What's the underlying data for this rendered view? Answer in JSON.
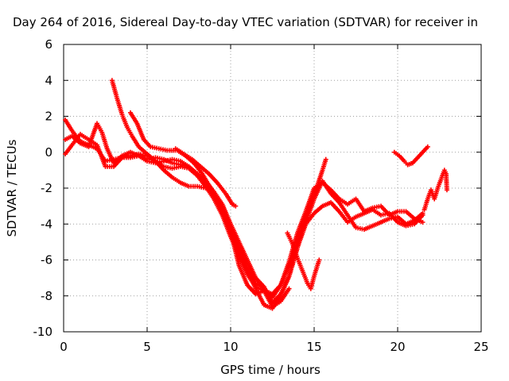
{
  "chart_data": {
    "type": "scatter",
    "title": "Day 264 of 2016, Sidereal Day-to-day VTEC variation (SDTVAR) for receiver in",
    "xlabel": "GPS time / hours",
    "ylabel": "SDTVAR / TECUs",
    "xlim": [
      0,
      25
    ],
    "ylim": [
      -10,
      6
    ],
    "xticks": [
      "0",
      "5",
      "10",
      "15",
      "20",
      "25"
    ],
    "yticks": [
      "-10",
      "-8",
      "-6",
      "-4",
      "-2",
      "0",
      "2",
      "4",
      "6"
    ],
    "grid": true,
    "marker": "plus",
    "color": "#ff0000",
    "series": [
      {
        "points": [
          [
            0.1,
            1.8
          ],
          [
            0.5,
            1.2
          ],
          [
            1.0,
            0.6
          ],
          [
            1.5,
            0.4
          ],
          [
            2.0,
            0.2
          ],
          [
            2.5,
            -0.5
          ],
          [
            3.0,
            -0.4
          ],
          [
            3.5,
            -0.3
          ],
          [
            4.0,
            -0.2
          ],
          [
            4.5,
            -0.1
          ],
          [
            5.0,
            -0.2
          ],
          [
            5.5,
            -0.5
          ],
          [
            6.0,
            -1.0
          ],
          [
            6.5,
            -1.4
          ],
          [
            7.0,
            -1.7
          ],
          [
            7.5,
            -1.9
          ],
          [
            8.0,
            -1.9
          ],
          [
            8.5,
            -2.0
          ],
          [
            9.0,
            -2.3
          ],
          [
            9.5,
            -2.9
          ],
          [
            10.0,
            -4.3
          ],
          [
            10.5,
            -5.6
          ],
          [
            11.0,
            -6.6
          ],
          [
            11.5,
            -7.6
          ],
          [
            12.0,
            -8.5
          ],
          [
            12.5,
            -8.7
          ],
          [
            13.0,
            -8.0
          ],
          [
            13.5,
            -6.9
          ],
          [
            14.0,
            -5.3
          ],
          [
            14.5,
            -3.9
          ],
          [
            15.0,
            -2.6
          ],
          [
            15.5,
            -1.6
          ],
          [
            16.0,
            -2.3
          ],
          [
            16.5,
            -2.8
          ],
          [
            17.0,
            -3.5
          ],
          [
            17.5,
            -4.2
          ],
          [
            18.0,
            -4.3
          ],
          [
            18.5,
            -4.1
          ],
          [
            19.0,
            -3.9
          ],
          [
            19.5,
            -3.7
          ],
          [
            20.0,
            -3.6
          ],
          [
            20.5,
            -4.0
          ],
          [
            21.0,
            -3.8
          ],
          [
            21.5,
            -3.4
          ]
        ]
      },
      {
        "points": [
          [
            0.1,
            0.7
          ],
          [
            0.5,
            0.9
          ],
          [
            1.0,
            0.5
          ],
          [
            1.5,
            0.3
          ],
          [
            2.0,
            1.6
          ],
          [
            2.3,
            1.1
          ],
          [
            2.6,
            0.2
          ],
          [
            3.0,
            -0.6
          ],
          [
            3.5,
            -0.2
          ],
          [
            4.0,
            0.0
          ],
          [
            4.5,
            -0.2
          ],
          [
            5.0,
            -0.4
          ],
          [
            5.5,
            -0.3
          ],
          [
            6.0,
            -0.4
          ],
          [
            6.5,
            -0.6
          ],
          [
            7.0,
            -0.7
          ],
          [
            7.5,
            -0.8
          ],
          [
            8.0,
            -1.3
          ],
          [
            8.5,
            -1.9
          ],
          [
            9.0,
            -2.5
          ],
          [
            9.5,
            -3.2
          ],
          [
            10.0,
            -4.4
          ],
          [
            10.5,
            -6.3
          ],
          [
            11.0,
            -7.4
          ],
          [
            11.5,
            -7.9
          ],
          [
            12.0,
            -7.7
          ],
          [
            12.5,
            -7.9
          ],
          [
            13.0,
            -7.4
          ],
          [
            13.5,
            -6.1
          ],
          [
            14.0,
            -4.5
          ],
          [
            14.5,
            -3.3
          ],
          [
            15.0,
            -2.0
          ],
          [
            15.5,
            -1.7
          ],
          [
            16.0,
            -2.1
          ],
          [
            16.5,
            -2.6
          ],
          [
            17.0,
            -2.9
          ],
          [
            17.5,
            -2.6
          ],
          [
            18.0,
            -3.3
          ],
          [
            18.5,
            -3.1
          ],
          [
            19.0,
            -3.0
          ],
          [
            19.5,
            -3.5
          ],
          [
            20.0,
            -3.3
          ],
          [
            20.5,
            -3.3
          ],
          [
            21.0,
            -3.7
          ],
          [
            21.5,
            -3.9
          ]
        ]
      },
      {
        "points": [
          [
            0.1,
            -0.1
          ],
          [
            0.5,
            0.4
          ],
          [
            1.0,
            1.0
          ],
          [
            1.5,
            0.7
          ],
          [
            2.0,
            0.4
          ],
          [
            2.5,
            -0.8
          ],
          [
            3.0,
            -0.8
          ],
          [
            3.5,
            -0.3
          ],
          [
            4.0,
            -0.3
          ],
          [
            4.5,
            -0.2
          ],
          [
            5.0,
            -0.5
          ],
          [
            5.5,
            -0.6
          ],
          [
            6.0,
            -0.5
          ],
          [
            6.5,
            -0.4
          ],
          [
            7.0,
            -0.5
          ],
          [
            7.5,
            -0.8
          ],
          [
            8.0,
            -1.2
          ],
          [
            8.5,
            -1.6
          ],
          [
            9.0,
            -2.2
          ],
          [
            9.5,
            -2.9
          ],
          [
            10.0,
            -4.0
          ],
          [
            10.5,
            -5.0
          ],
          [
            11.0,
            -6.0
          ],
          [
            11.5,
            -7.0
          ],
          [
            12.0,
            -7.5
          ],
          [
            12.5,
            -8.4
          ],
          [
            13.0,
            -7.9
          ],
          [
            13.5,
            -6.9
          ],
          [
            14.0,
            -5.3
          ],
          [
            14.5,
            -4.0
          ],
          [
            15.0,
            -3.4
          ],
          [
            15.5,
            -3.0
          ],
          [
            16.0,
            -2.8
          ],
          [
            16.5,
            -3.3
          ],
          [
            17.0,
            -3.9
          ],
          [
            17.5,
            -3.6
          ],
          [
            18.0,
            -3.4
          ],
          [
            18.5,
            -3.2
          ],
          [
            19.0,
            -3.5
          ],
          [
            19.5,
            -3.4
          ],
          [
            20.0,
            -3.9
          ],
          [
            20.5,
            -4.1
          ],
          [
            21.0,
            -4.0
          ],
          [
            21.5,
            -3.5
          ]
        ]
      },
      {
        "points": [
          [
            2.9,
            4.0
          ],
          [
            3.2,
            3.0
          ],
          [
            3.5,
            2.1
          ],
          [
            3.8,
            1.4
          ],
          [
            4.1,
            0.9
          ],
          [
            4.5,
            0.3
          ],
          [
            5.0,
            -0.1
          ],
          [
            5.5,
            -0.5
          ],
          [
            6.0,
            -0.8
          ],
          [
            6.5,
            -0.9
          ],
          [
            7.0,
            -0.8
          ],
          [
            7.5,
            -0.9
          ],
          [
            8.0,
            -1.3
          ],
          [
            8.5,
            -1.9
          ],
          [
            9.0,
            -2.6
          ],
          [
            9.5,
            -3.5
          ],
          [
            10.0,
            -4.7
          ],
          [
            10.5,
            -5.8
          ],
          [
            11.0,
            -6.8
          ],
          [
            11.5,
            -7.5
          ],
          [
            12.0,
            -7.7
          ],
          [
            12.5,
            -8.6
          ],
          [
            13.0,
            -8.3
          ],
          [
            13.5,
            -7.6
          ]
        ]
      },
      {
        "points": [
          [
            4.0,
            2.2
          ],
          [
            4.4,
            1.6
          ],
          [
            4.8,
            0.7
          ],
          [
            5.2,
            0.3
          ],
          [
            5.7,
            0.2
          ],
          [
            6.2,
            0.1
          ],
          [
            6.8,
            0.1
          ],
          [
            7.3,
            -0.2
          ],
          [
            7.8,
            -0.6
          ],
          [
            8.3,
            -1.2
          ],
          [
            8.8,
            -2.0
          ],
          [
            9.3,
            -2.9
          ],
          [
            9.6,
            -3.4
          ],
          [
            10.0,
            -4.1
          ],
          [
            10.5,
            -5.3
          ],
          [
            11.0,
            -6.4
          ],
          [
            11.5,
            -7.3
          ],
          [
            12.0,
            -7.6
          ],
          [
            12.5,
            -8.1
          ],
          [
            13.0,
            -7.4
          ],
          [
            13.5,
            -6.3
          ],
          [
            14.0,
            -5.0
          ],
          [
            14.5,
            -3.6
          ],
          [
            15.0,
            -2.4
          ],
          [
            15.5,
            -1.0
          ],
          [
            15.7,
            -0.4
          ]
        ]
      },
      {
        "points": [
          [
            6.7,
            0.2
          ],
          [
            7.2,
            -0.1
          ],
          [
            7.7,
            -0.4
          ],
          [
            8.2,
            -0.8
          ],
          [
            8.7,
            -1.2
          ],
          [
            9.2,
            -1.7
          ],
          [
            9.7,
            -2.3
          ],
          [
            10.1,
            -2.9
          ],
          [
            10.3,
            -3.0
          ]
        ]
      },
      {
        "points": [
          [
            13.4,
            -4.5
          ],
          [
            13.7,
            -5.1
          ],
          [
            14.0,
            -5.9
          ],
          [
            14.3,
            -6.6
          ],
          [
            14.6,
            -7.3
          ],
          [
            14.8,
            -7.6
          ],
          [
            15.0,
            -6.9
          ],
          [
            15.3,
            -6.0
          ]
        ]
      },
      {
        "points": [
          [
            19.8,
            0.0
          ],
          [
            20.1,
            -0.2
          ],
          [
            20.4,
            -0.5
          ],
          [
            20.6,
            -0.7
          ],
          [
            20.9,
            -0.6
          ],
          [
            21.2,
            -0.3
          ],
          [
            21.5,
            0.0
          ],
          [
            21.8,
            0.3
          ]
        ]
      },
      {
        "points": [
          [
            21.6,
            -3.2
          ],
          [
            21.8,
            -2.6
          ],
          [
            22.0,
            -2.1
          ],
          [
            22.2,
            -2.6
          ],
          [
            22.4,
            -2.0
          ],
          [
            22.6,
            -1.5
          ],
          [
            22.8,
            -1.0
          ],
          [
            22.9,
            -1.2
          ],
          [
            22.95,
            -2.1
          ]
        ]
      }
    ]
  }
}
